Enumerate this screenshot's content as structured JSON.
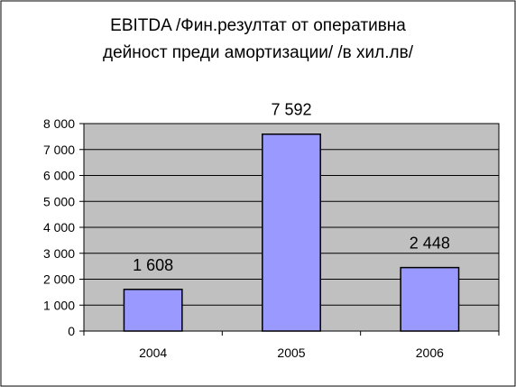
{
  "chart_data": {
    "type": "bar",
    "title_lines": [
      "EBITDA /Фин.резултат от оперативна",
      "дейност преди амортизации/ /в хил.лв/"
    ],
    "categories": [
      "2004",
      "2005",
      "2006"
    ],
    "values": [
      1608,
      7592,
      2448
    ],
    "data_labels": [
      "1 608",
      "7 592",
      "2 448"
    ],
    "y_ticks": [
      0,
      1000,
      2000,
      3000,
      4000,
      5000,
      6000,
      7000,
      8000
    ],
    "y_tick_labels": [
      "0",
      "1 000",
      "2 000",
      "3 000",
      "4 000",
      "5 000",
      "6 000",
      "7 000",
      "8 000"
    ],
    "ylim": [
      0,
      8000
    ],
    "grid": true,
    "legend": "none"
  },
  "colors": {
    "plot_background": "#C0C0C0",
    "bar_fill": "#9999FF",
    "bar_stroke": "#000000",
    "gridline": "#000000",
    "frame": "#000000"
  }
}
